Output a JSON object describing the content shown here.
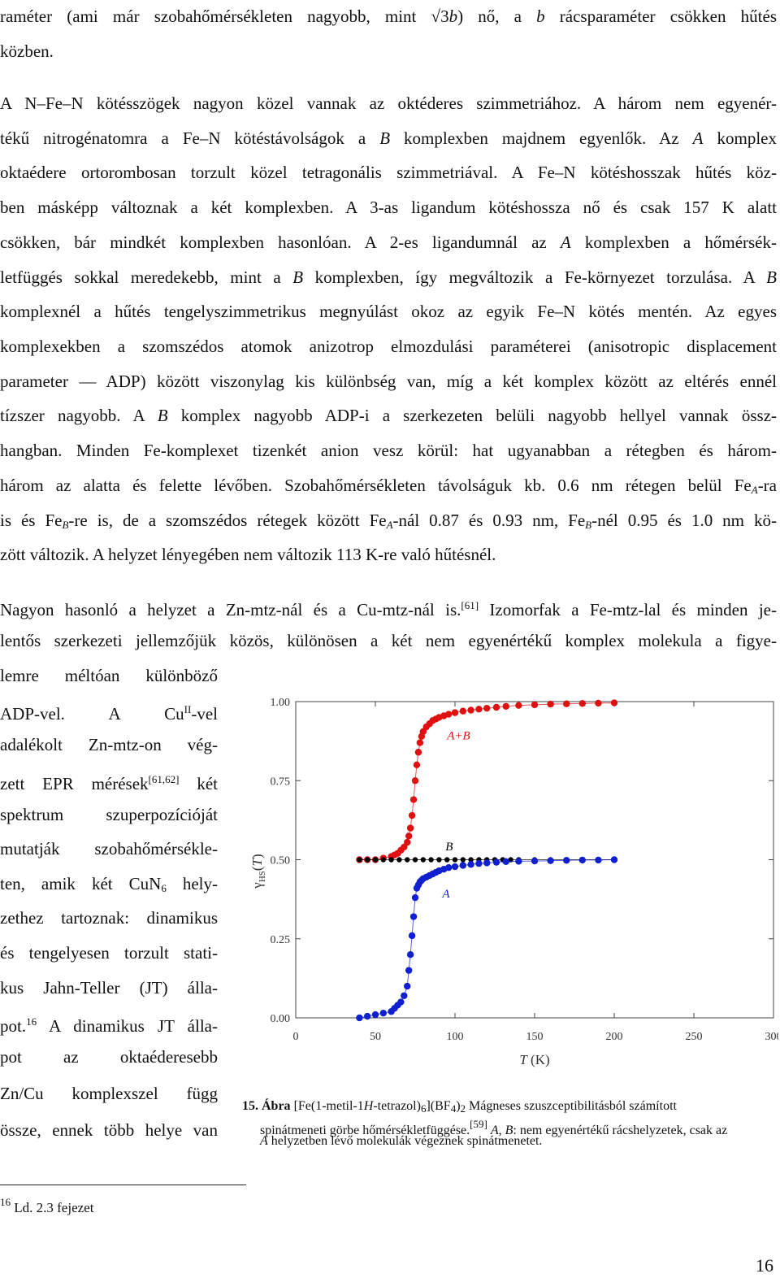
{
  "paragraph1": {
    "lines": [
      "raméter (ami már szobahőmérsékleten nagyobb, mint √3b) nő, a b rácsparaméter csökken hűtés",
      "közben."
    ]
  },
  "paragraph2": {
    "lines": [
      "A N–Fe–N kötésszögek nagyon közel vannak az oktéderes szimmetriához. A három nem egyenér-",
      "tékű nitrogénatomra a Fe–N kötéstávolságok a B komplexben majdnem egyenlők. Az A komplex",
      "oktaédere ortorombosan torzult közel tetragonális szimmetriával. A Fe–N kötéshosszak hűtés köz-",
      "ben másképp változnak a két komplexben. A 3-as ligandum kötéshossza nő és csak 157 K alatt",
      "csökken, bár mindkét komplexben hasonlóan. A 2-es ligandumnál az A komplexben a hőmérsék-",
      "letfüggés sokkal meredekebb, mint a B komplexben, így megváltozik a Fe-környezet torzulása. A B",
      "komplexnél a hűtés tengelyszimmetrikus megnyúlást okoz az egyik Fe–N kötés mentén. Az egyes",
      "komplexekben a szomszédos atomok anizotrop elmozdulási paraméterei (anisotropic displacement",
      "parameter — ADP) között viszonylag kis különbség van, míg a két komplex között az eltérés ennél",
      "tízszer nagyobb. A B komplex nagyobb ADP-i a szerkezeten belüli nagyobb hellyel vannak össz-",
      "hangban. Minden Fe-komplexet tizenkét anion vesz körül: hat ugyanabban a rétegben és három-",
      "három az alatta és felette lévőben. Szobahőmérsékleten távolságuk kb. 0.6 nm rétegen belül FeA-ra",
      "is és FeB-re is, de a szomszédos rétegek között FeA-nál 0.87 és 0.93 nm, FeB-nél 0.95 és 1.0 nm kö-",
      "zött változik. A helyzet lényegében nem változik 113 K-re való hűtésnél."
    ]
  },
  "paragraph3": {
    "lines": [
      "Nagyon hasonló a helyzet a Zn-mtz-nál és a Cu-mtz-nál is.[61] Izomorfak a Fe-mtz-lal és minden je-",
      "lentős szerkezeti jellemzőjük közös, különösen a két nem egyenértékű komplex molekula a figye-",
      "lemre méltóan különböző"
    ],
    "narrow_lines": [
      "ADP-vel. A CuII-vel",
      "adalékolt Zn-mtz-on vég-",
      "zett EPR mérések[61,62] két",
      "spektrum szuperpozícióját",
      "mutatják szobahőmérsékle-",
      "ten, amik két CuN6 hely-",
      "zethez tartoznak: dinamikus",
      "és tengelyesen torzult stati-",
      "kus Jahn-Teller (JT) álla-",
      "pot.16 A dinamikus JT álla-",
      "pot az oktaéderesebb",
      "Zn/Cu komplexszel függ",
      "össze, ennek több helye van"
    ]
  },
  "figure": {
    "label": "15. Ábra",
    "caption_line1": "[Fe(1-metil-1H-tetrazol)6](BF4)2 Mágneses szuszceptibilitásból számított",
    "caption_line2": "spinátmeneti görbe hőmérsékletfüggése.[59] A, B: nem egyenértékű rácshelyzetek, csak az",
    "caption_line3": "A helyzetben lévő molekulák végeznek spinátmenetet."
  },
  "chart_data": {
    "type": "scatter",
    "xlabel": "T (K)",
    "ylabel": "γHS(T)",
    "xlim": [
      0,
      300
    ],
    "ylim": [
      0,
      1
    ],
    "xticks": [
      "0",
      "50",
      "100",
      "150",
      "200",
      "250",
      "300"
    ],
    "yticks": [
      "0.00",
      "0.25",
      "0.50",
      "0.75",
      "1.00"
    ],
    "grid": false,
    "colors": {
      "A+B": "#e01010",
      "B": "#000000",
      "A": "#1020d0"
    },
    "series": [
      {
        "name": "A+B",
        "x": [
          40,
          45,
          50,
          55,
          60,
          62,
          64,
          66,
          68,
          70,
          71,
          72,
          73,
          74,
          75,
          76,
          77,
          78,
          79,
          80,
          82,
          84,
          86,
          88,
          90,
          93,
          96,
          100,
          105,
          110,
          115,
          120,
          126,
          132,
          140,
          150,
          160,
          170,
          180,
          190,
          200
        ],
        "y": [
          0.5,
          0.5,
          0.5,
          0.505,
          0.51,
          0.515,
          0.52,
          0.53,
          0.54,
          0.555,
          0.575,
          0.6,
          0.64,
          0.69,
          0.75,
          0.8,
          0.84,
          0.87,
          0.89,
          0.905,
          0.92,
          0.93,
          0.94,
          0.945,
          0.95,
          0.955,
          0.96,
          0.965,
          0.97,
          0.973,
          0.976,
          0.979,
          0.982,
          0.985,
          0.988,
          0.99,
          0.992,
          0.993,
          0.994,
          0.995,
          0.996
        ]
      },
      {
        "name": "B",
        "x": [
          40,
          45,
          50,
          55,
          60,
          65,
          70,
          75,
          80,
          85,
          90,
          95,
          100,
          105,
          110,
          115,
          120,
          125,
          130,
          135,
          140,
          150,
          160,
          170,
          180,
          190,
          200
        ],
        "y": [
          0.5,
          0.5,
          0.5,
          0.5,
          0.5,
          0.5,
          0.5,
          0.5,
          0.5,
          0.5,
          0.5,
          0.5,
          0.5,
          0.5,
          0.5,
          0.5,
          0.5,
          0.5,
          0.5,
          0.5,
          0.5,
          0.5,
          0.5,
          0.5,
          0.5,
          0.5,
          0.5
        ]
      },
      {
        "name": "A",
        "x": [
          40,
          45,
          50,
          55,
          60,
          62,
          64,
          66,
          68,
          70,
          71,
          72,
          73,
          74,
          75,
          76,
          77,
          78,
          79,
          80,
          82,
          84,
          86,
          88,
          90,
          93,
          96,
          100,
          105,
          110,
          115,
          120,
          126,
          132,
          140,
          150,
          160,
          170,
          180,
          190,
          200
        ],
        "y": [
          0.0,
          0.005,
          0.01,
          0.015,
          0.02,
          0.03,
          0.04,
          0.05,
          0.07,
          0.1,
          0.15,
          0.2,
          0.26,
          0.32,
          0.38,
          0.41,
          0.42,
          0.43,
          0.435,
          0.44,
          0.445,
          0.45,
          0.455,
          0.46,
          0.465,
          0.47,
          0.475,
          0.478,
          0.482,
          0.485,
          0.488,
          0.49,
          0.492,
          0.494,
          0.495,
          0.496,
          0.497,
          0.498,
          0.499,
          0.499,
          0.5
        ]
      }
    ],
    "annotations": [
      {
        "text": "A+B",
        "x": 95,
        "y": 0.88
      },
      {
        "text": "B",
        "x": 94,
        "y": 0.53
      },
      {
        "text": "A",
        "x": 92,
        "y": 0.38
      }
    ]
  },
  "footnote": {
    "mark": "16",
    "text": "Ld. 2.3 fejezet"
  },
  "page_number": "16"
}
